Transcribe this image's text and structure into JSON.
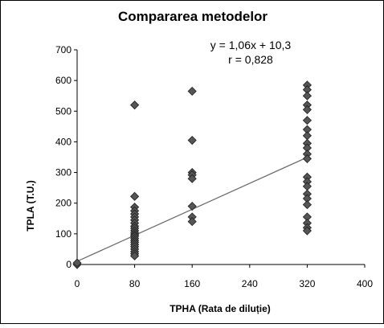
{
  "chart_data": {
    "type": "scatter",
    "title": "Compararea metodelor",
    "xlabel": "TPHA (Rata de diluție)",
    "ylabel": "TPLA (T.U.)",
    "xlim": [
      0,
      400
    ],
    "ylim": [
      0,
      700
    ],
    "x_ticks": [
      "0",
      "80",
      "160",
      "240",
      "320",
      "400"
    ],
    "y_ticks": [
      "0",
      "100",
      "200",
      "300",
      "400",
      "500",
      "600",
      "700"
    ],
    "grid": false,
    "legend": "none",
    "annotations": {
      "equation": "y = 1,06x + 10,3",
      "r": "r = 0,828"
    },
    "trendline": {
      "slope": 1.06,
      "intercept": 10.3
    },
    "series": [
      {
        "marker": "diamond",
        "points": [
          [
            0,
            0
          ],
          [
            0,
            5
          ],
          [
            80,
            520
          ],
          [
            80,
            222
          ],
          [
            80,
            187
          ],
          [
            80,
            175
          ],
          [
            80,
            165
          ],
          [
            80,
            155
          ],
          [
            80,
            145
          ],
          [
            80,
            135
          ],
          [
            80,
            125
          ],
          [
            80,
            118
          ],
          [
            80,
            110
          ],
          [
            80,
            103
          ],
          [
            80,
            97
          ],
          [
            80,
            92
          ],
          [
            80,
            85
          ],
          [
            80,
            78
          ],
          [
            80,
            72
          ],
          [
            80,
            65
          ],
          [
            80,
            58
          ],
          [
            80,
            50
          ],
          [
            80,
            42
          ],
          [
            80,
            35
          ],
          [
            80,
            28
          ],
          [
            160,
            565
          ],
          [
            160,
            405
          ],
          [
            160,
            300
          ],
          [
            160,
            292
          ],
          [
            160,
            280
          ],
          [
            160,
            190
          ],
          [
            160,
            155
          ],
          [
            160,
            140
          ],
          [
            320,
            585
          ],
          [
            320,
            570
          ],
          [
            320,
            550
          ],
          [
            320,
            520
          ],
          [
            320,
            505
          ],
          [
            320,
            470
          ],
          [
            320,
            440
          ],
          [
            320,
            420
          ],
          [
            320,
            395
          ],
          [
            320,
            380
          ],
          [
            320,
            360
          ],
          [
            320,
            345
          ],
          [
            320,
            285
          ],
          [
            320,
            270
          ],
          [
            320,
            255
          ],
          [
            320,
            230
          ],
          [
            320,
            215
          ],
          [
            320,
            195
          ],
          [
            320,
            155
          ],
          [
            320,
            135
          ],
          [
            320,
            120
          ],
          [
            320,
            110
          ]
        ]
      }
    ],
    "colors": {
      "marker_fill": "#555555",
      "marker_stroke": "#1e1e1e",
      "trendline": "#6e6e6e",
      "axis": "#000000"
    }
  }
}
